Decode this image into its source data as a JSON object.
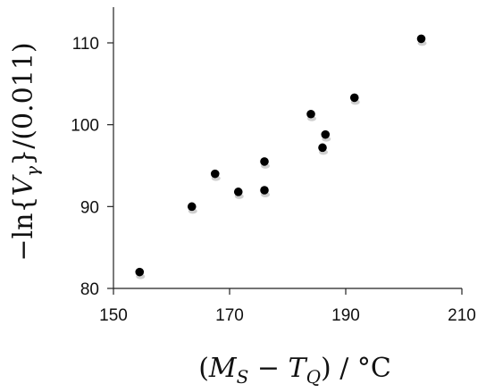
{
  "chart_data": {
    "type": "scatter",
    "title": "",
    "xlabel": "(M_S − T_Q) / °C",
    "ylabel": "−ln{V_γ}/(0.011)",
    "xlim": [
      150,
      210
    ],
    "ylim": [
      80,
      115
    ],
    "xticks": [
      150,
      170,
      190,
      210
    ],
    "yticks": [
      80,
      90,
      100,
      110
    ],
    "xtick_labels": [
      "150",
      "170",
      "190",
      "210"
    ],
    "ytick_labels": [
      "80",
      "90",
      "100",
      "110"
    ],
    "grid": false,
    "legend": "none",
    "series": [
      {
        "points": [
          {
            "x": 154.5,
            "y": 82.0
          },
          {
            "x": 163.5,
            "y": 90.0
          },
          {
            "x": 167.5,
            "y": 94.0
          },
          {
            "x": 171.5,
            "y": 91.8
          },
          {
            "x": 176.0,
            "y": 92.0
          },
          {
            "x": 176.0,
            "y": 95.5
          },
          {
            "x": 184.0,
            "y": 101.3
          },
          {
            "x": 186.0,
            "y": 97.2
          },
          {
            "x": 186.5,
            "y": 98.8
          },
          {
            "x": 191.5,
            "y": 103.3
          },
          {
            "x": 203.0,
            "y": 110.5
          }
        ]
      }
    ]
  }
}
